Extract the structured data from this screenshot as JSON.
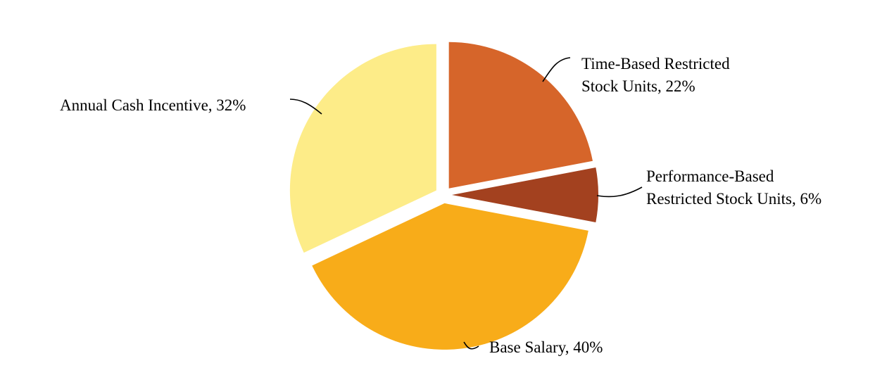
{
  "chart_data": {
    "type": "pie",
    "title": "",
    "slices": [
      {
        "label": "Time-Based Restricted Stock Units",
        "label_lines": [
          "Time-Based Restricted",
          "Stock Units, 22%"
        ],
        "value": 22,
        "color": "#D6652A"
      },
      {
        "label": "Performance-Based Restricted Stock Units",
        "label_lines": [
          "Performance-Based",
          "Restricted Stock Units, 6%"
        ],
        "value": 6,
        "color": "#A3411F"
      },
      {
        "label": "Base Salary",
        "label_lines": [
          "Base Salary, 40%"
        ],
        "value": 40,
        "color": "#F8AC19"
      },
      {
        "label": "Annual Cash Incentive",
        "label_lines": [
          "Annual Cash Incentive, 32%"
        ],
        "value": 32,
        "color": "#FDEC88"
      }
    ],
    "start_angle_deg": 0,
    "direction": "clockwise",
    "exploded": true,
    "legend": "none"
  }
}
